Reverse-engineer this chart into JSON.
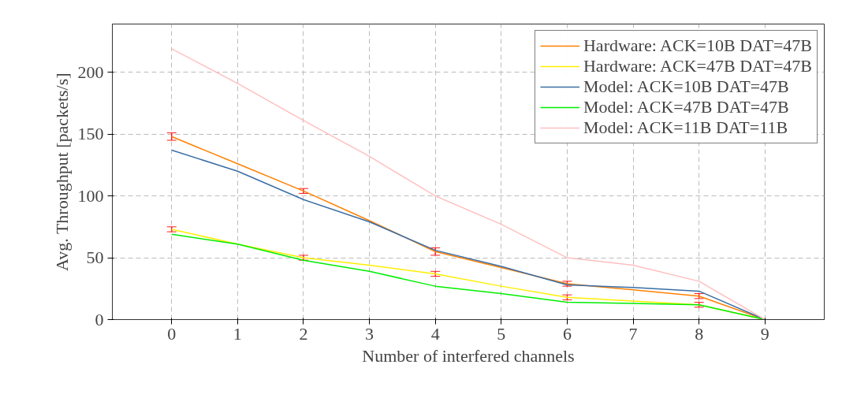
{
  "chart_data": {
    "type": "line",
    "xlabel": "Number of interfered channels",
    "ylabel": "Avg. Throughput [packets/s]",
    "x": [
      0,
      1,
      2,
      3,
      4,
      5,
      6,
      7,
      8,
      9
    ],
    "xlim": [
      -0.9,
      9.9
    ],
    "xticks": [
      0,
      1,
      2,
      3,
      4,
      5,
      6,
      7,
      8,
      9
    ],
    "ylim": [
      0,
      239
    ],
    "yticks": [
      0,
      50,
      100,
      150,
      200
    ],
    "grid": true,
    "legend": "top right",
    "marker": "none",
    "line_style": "solid",
    "series": [
      {
        "name": "Hardware: ACK=10B DAT=47B",
        "color": "#ff8000",
        "values": [
          148,
          126,
          104,
          80,
          55,
          42,
          29,
          24,
          19,
          0
        ],
        "errors": [
          3,
          null,
          2,
          null,
          3,
          null,
          2,
          null,
          2,
          null
        ]
      },
      {
        "name": "Hardware: ACK=47B DAT=47B",
        "color": "#ffee00",
        "values": [
          73,
          61,
          50,
          44,
          37,
          27,
          18,
          15,
          12,
          0
        ],
        "errors": [
          2,
          null,
          2,
          null,
          2,
          null,
          2,
          null,
          2,
          null
        ]
      },
      {
        "name": "Model: ACK=10B DAT=47B",
        "color": "#3a6ea5",
        "values": [
          137,
          120,
          97,
          79,
          56,
          43,
          28,
          26,
          23,
          0
        ]
      },
      {
        "name": "Model: ACK=47B DAT=47B",
        "color": "#00ee00",
        "values": [
          69,
          61,
          48,
          39,
          27,
          21,
          14,
          13,
          12,
          0
        ]
      },
      {
        "name": "Model: ACK=11B DAT=11B",
        "color": "#ffbfbf",
        "values": [
          219,
          191,
          161,
          132,
          100,
          77,
          50,
          44,
          31,
          0
        ]
      }
    ]
  }
}
